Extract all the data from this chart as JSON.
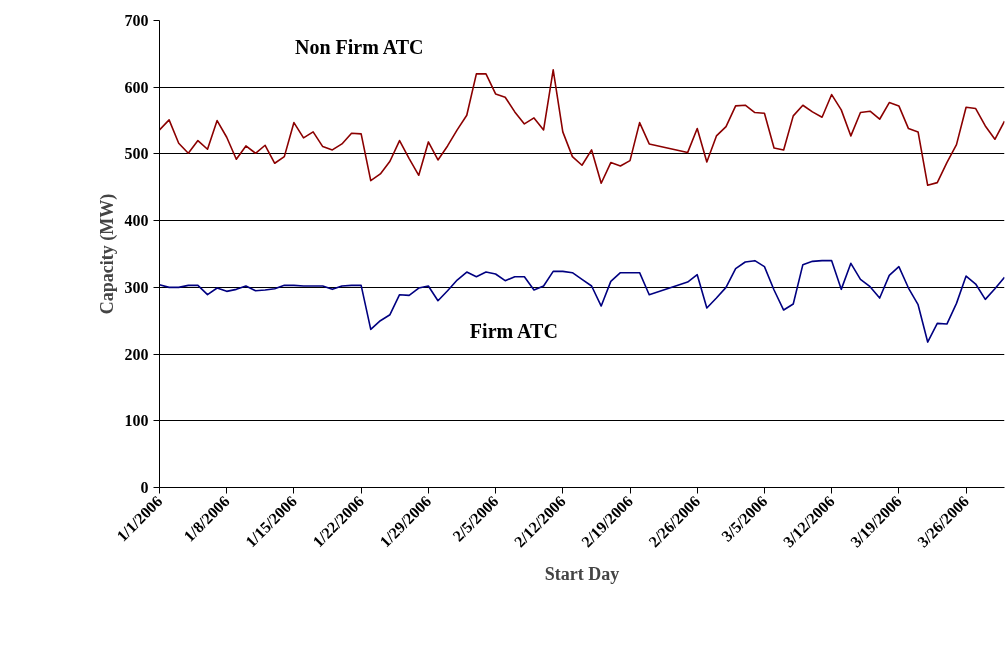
{
  "chart_data": {
    "type": "line",
    "xlabel": "Start Day",
    "ylabel": "Capacity (MW)",
    "x": [
      "2006-01-01",
      "2006-01-02",
      "2006-01-03",
      "2006-01-04",
      "2006-01-05",
      "2006-01-06",
      "2006-01-07",
      "2006-01-08",
      "2006-01-09",
      "2006-01-10",
      "2006-01-11",
      "2006-01-12",
      "2006-01-13",
      "2006-01-14",
      "2006-01-15",
      "2006-01-16",
      "2006-01-17",
      "2006-01-18",
      "2006-01-19",
      "2006-01-20",
      "2006-01-21",
      "2006-01-22",
      "2006-01-23",
      "2006-01-24",
      "2006-01-25",
      "2006-01-26",
      "2006-01-27",
      "2006-01-28",
      "2006-01-29",
      "2006-01-30",
      "2006-01-31",
      "2006-02-01",
      "2006-02-02",
      "2006-02-03",
      "2006-02-04",
      "2006-02-05",
      "2006-02-06",
      "2006-02-07",
      "2006-02-08",
      "2006-02-09",
      "2006-02-10",
      "2006-02-11",
      "2006-02-12",
      "2006-02-13",
      "2006-02-14",
      "2006-02-15",
      "2006-02-16",
      "2006-02-17",
      "2006-02-18",
      "2006-02-19",
      "2006-02-20",
      "2006-02-21",
      "2006-02-25",
      "2006-02-26",
      "2006-02-27",
      "2006-02-28",
      "2006-03-01",
      "2006-03-02",
      "2006-03-03",
      "2006-03-04",
      "2006-03-05",
      "2006-03-06",
      "2006-03-07",
      "2006-03-08",
      "2006-03-09",
      "2006-03-10",
      "2006-03-11",
      "2006-03-12",
      "2006-03-13",
      "2006-03-14",
      "2006-03-15",
      "2006-03-16",
      "2006-03-17",
      "2006-03-18",
      "2006-03-19",
      "2006-03-20",
      "2006-03-21",
      "2006-03-22",
      "2006-03-23",
      "2006-03-24",
      "2006-03-25",
      "2006-03-26",
      "2006-03-27",
      "2006-03-28",
      "2006-03-29",
      "2006-03-30"
    ],
    "series": [
      {
        "name": "Non Firm ATC",
        "color": "#8b0000",
        "values": [
          536,
          551,
          516,
          501,
          520,
          507,
          550,
          525,
          492,
          512,
          501,
          513,
          486,
          496,
          547,
          524,
          533,
          511,
          506,
          515,
          531,
          530,
          460,
          470,
          489,
          520,
          493,
          468,
          518,
          491,
          512,
          536,
          558,
          620,
          620,
          590,
          585,
          563,
          545,
          554,
          536,
          626,
          533,
          496,
          483,
          506,
          456,
          487,
          482,
          490,
          547,
          515,
          502,
          538,
          488,
          527,
          541,
          572,
          573,
          562,
          561,
          509,
          506,
          557,
          573,
          563,
          555,
          589,
          566,
          527,
          562,
          564,
          552,
          577,
          572,
          538,
          533,
          453,
          457,
          487,
          514,
          570,
          568,
          542,
          522,
          549
        ]
      },
      {
        "name": "Firm ATC",
        "color": "#000080",
        "values": [
          304,
          300,
          300,
          303,
          303,
          289,
          299,
          294,
          297,
          302,
          295,
          296,
          298,
          303,
          303,
          302,
          302,
          302,
          297,
          302,
          303,
          303,
          237,
          250,
          259,
          289,
          288,
          299,
          302,
          280,
          295,
          311,
          323,
          316,
          323,
          320,
          310,
          316,
          316,
          296,
          302,
          324,
          324,
          322,
          312,
          302,
          272,
          309,
          322,
          322,
          322,
          289,
          308,
          319,
          269,
          284,
          300,
          328,
          338,
          340,
          331,
          296,
          266,
          275,
          334,
          339,
          340,
          340,
          297,
          336,
          312,
          301,
          284,
          318,
          331,
          299,
          274,
          218,
          246,
          245,
          276,
          317,
          305,
          282,
          298,
          315
        ]
      }
    ],
    "xlim": [
      "2006-01-01",
      "2006-03-30"
    ],
    "xticks": [
      {
        "value": "2006-01-01",
        "label": "1/1/2006"
      },
      {
        "value": "2006-01-08",
        "label": "1/8/2006"
      },
      {
        "value": "2006-01-15",
        "label": "1/15/2006"
      },
      {
        "value": "2006-01-22",
        "label": "1/22/2006"
      },
      {
        "value": "2006-01-29",
        "label": "1/29/2006"
      },
      {
        "value": "2006-02-05",
        "label": "2/5/2006"
      },
      {
        "value": "2006-02-12",
        "label": "2/12/2006"
      },
      {
        "value": "2006-02-19",
        "label": "2/19/2006"
      },
      {
        "value": "2006-02-26",
        "label": "2/26/2006"
      },
      {
        "value": "2006-03-05",
        "label": "3/5/2006"
      },
      {
        "value": "2006-03-12",
        "label": "3/12/2006"
      },
      {
        "value": "2006-03-19",
        "label": "3/19/2006"
      },
      {
        "value": "2006-03-26",
        "label": "3/26/2006"
      }
    ],
    "ylim": [
      0,
      700
    ],
    "yticks": [
      0,
      100,
      200,
      300,
      400,
      500,
      600,
      700
    ],
    "grid": "y",
    "legend": false,
    "marker": "none",
    "line_style": "solid"
  }
}
